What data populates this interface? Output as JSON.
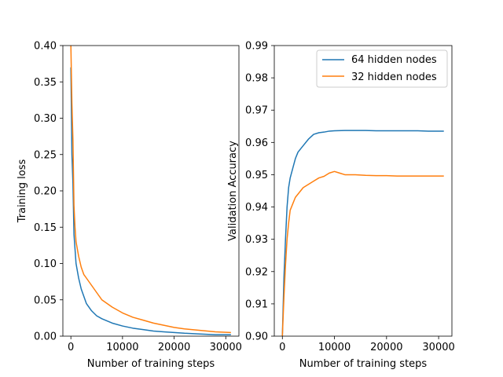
{
  "chart_data": [
    {
      "type": "line",
      "xlabel": "Number of training steps",
      "ylabel": "Training loss",
      "xlim": [
        -1550,
        32550
      ],
      "ylim": [
        0.0,
        0.4
      ],
      "xticks": [
        0,
        10000,
        20000,
        30000
      ],
      "xtick_labels": [
        "0",
        "10000",
        "20000",
        "30000"
      ],
      "yticks": [
        0.0,
        0.05,
        0.1,
        0.15,
        0.2,
        0.25,
        0.3,
        0.35,
        0.4
      ],
      "ytick_labels": [
        "0.00",
        "0.05",
        "0.10",
        "0.15",
        "0.20",
        "0.25",
        "0.30",
        "0.35",
        "0.40"
      ],
      "grid": false,
      "legend": false,
      "series": [
        {
          "color": "#1f77b4",
          "x": [
            0,
            200,
            400,
            600,
            800,
            1000,
            1500,
            2000,
            2500,
            3000,
            4000,
            5000,
            6000,
            7000,
            8000,
            10000,
            12000,
            14000,
            16000,
            18000,
            20000,
            22000,
            25000,
            28000,
            31000
          ],
          "y": [
            0.37,
            0.25,
            0.21,
            0.14,
            0.12,
            0.1,
            0.08,
            0.065,
            0.055,
            0.045,
            0.035,
            0.028,
            0.024,
            0.021,
            0.018,
            0.014,
            0.011,
            0.009,
            0.007,
            0.006,
            0.005,
            0.004,
            0.003,
            0.002,
            0.002
          ]
        },
        {
          "color": "#ff7f0e",
          "x": [
            0,
            200,
            400,
            600,
            800,
            1000,
            1500,
            2000,
            2500,
            3000,
            4000,
            5000,
            6000,
            7000,
            8000,
            10000,
            12000,
            14000,
            16000,
            18000,
            20000,
            22000,
            25000,
            28000,
            31000
          ],
          "y": [
            0.4,
            0.32,
            0.27,
            0.18,
            0.15,
            0.13,
            0.11,
            0.095,
            0.085,
            0.08,
            0.07,
            0.06,
            0.05,
            0.045,
            0.04,
            0.032,
            0.026,
            0.022,
            0.018,
            0.015,
            0.012,
            0.01,
            0.008,
            0.006,
            0.005
          ]
        }
      ]
    },
    {
      "type": "line",
      "xlabel": "Number of training steps",
      "ylabel": "Validation Accuracy",
      "xlim": [
        -1550,
        32550
      ],
      "ylim": [
        0.9,
        0.99
      ],
      "xticks": [
        0,
        10000,
        20000,
        30000
      ],
      "xtick_labels": [
        "0",
        "10000",
        "20000",
        "30000"
      ],
      "yticks": [
        0.9,
        0.91,
        0.92,
        0.93,
        0.94,
        0.95,
        0.96,
        0.97,
        0.98,
        0.99
      ],
      "ytick_labels": [
        "0.90",
        "0.91",
        "0.92",
        "0.93",
        "0.94",
        "0.95",
        "0.96",
        "0.97",
        "0.98",
        "0.99"
      ],
      "grid": false,
      "legend": "top-right",
      "series": [
        {
          "name": "64 hidden nodes",
          "color": "#1f77b4",
          "x": [
            0,
            300,
            600,
            900,
            1200,
            1500,
            2000,
            2500,
            3000,
            3500,
            4000,
            5000,
            6000,
            7000,
            8000,
            9000,
            10000,
            12000,
            14000,
            16000,
            18000,
            20000,
            22000,
            24000,
            26000,
            28000,
            30000,
            31000
          ],
          "y": [
            0.9,
            0.918,
            0.93,
            0.94,
            0.946,
            0.949,
            0.952,
            0.955,
            0.957,
            0.958,
            0.959,
            0.961,
            0.9625,
            0.963,
            0.9632,
            0.9635,
            0.9636,
            0.9637,
            0.9637,
            0.9637,
            0.9636,
            0.9636,
            0.9636,
            0.9636,
            0.9636,
            0.9635,
            0.9635,
            0.9635
          ]
        },
        {
          "name": "32 hidden nodes",
          "color": "#ff7f0e",
          "x": [
            0,
            300,
            600,
            900,
            1200,
            1500,
            2000,
            2500,
            3000,
            3500,
            4000,
            5000,
            6000,
            7000,
            8000,
            9000,
            10000,
            11000,
            12000,
            14000,
            16000,
            18000,
            20000,
            22000,
            24000,
            26000,
            28000,
            30000,
            31000
          ],
          "y": [
            0.9,
            0.912,
            0.922,
            0.93,
            0.935,
            0.939,
            0.941,
            0.943,
            0.944,
            0.945,
            0.946,
            0.947,
            0.948,
            0.949,
            0.9495,
            0.9505,
            0.951,
            0.9505,
            0.95,
            0.95,
            0.9498,
            0.9497,
            0.9497,
            0.9496,
            0.9496,
            0.9496,
            0.9496,
            0.9496,
            0.9496
          ]
        }
      ]
    }
  ]
}
